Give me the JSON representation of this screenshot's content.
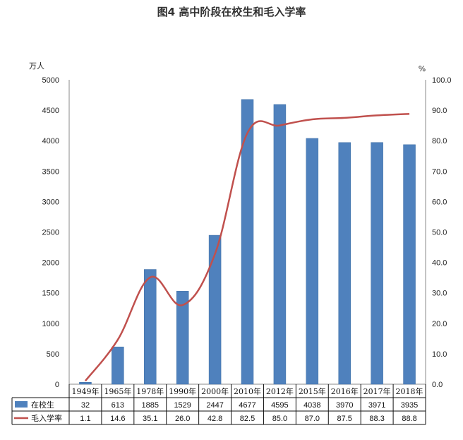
{
  "title": "图4  高中阶段在校生和毛入学率",
  "chart_data": {
    "type": "bar",
    "categories": [
      "1949年",
      "1965年",
      "1978年",
      "1990年",
      "2000年",
      "2010年",
      "2012年",
      "2015年",
      "2016年",
      "2017年",
      "2018年"
    ],
    "series": [
      {
        "name": "在校生",
        "type": "bar",
        "axis": "left",
        "color": "#4f81bd",
        "values": [
          32,
          613,
          1885,
          1529,
          2447,
          4677,
          4595,
          4038,
          3970,
          3971,
          3935
        ]
      },
      {
        "name": "毛入学率",
        "type": "line",
        "axis": "right",
        "color": "#c0504d",
        "values": [
          1.1,
          14.6,
          35.1,
          26.0,
          42.8,
          82.5,
          85.0,
          87.0,
          87.5,
          88.3,
          88.8
        ]
      }
    ],
    "left_axis": {
      "unit": "万人",
      "min": 0,
      "max": 5000,
      "step": 500,
      "ticks": [
        "0",
        "500",
        "1000",
        "1500",
        "2000",
        "2500",
        "3000",
        "3500",
        "4000",
        "4500",
        "5000"
      ]
    },
    "right_axis": {
      "unit": "%",
      "min": 0,
      "max": 100,
      "step": 10,
      "ticks": [
        "0.0",
        "10.0",
        "20.0",
        "30.0",
        "40.0",
        "50.0",
        "60.0",
        "70.0",
        "80.0",
        "90.0",
        "100.0"
      ]
    },
    "bar_labels": [
      "32",
      "613",
      "1885",
      "1529",
      "2447",
      "4677",
      "4595",
      "4038",
      "3970",
      "3971",
      "3935"
    ],
    "line_labels": [
      "1.1",
      "14.6",
      "35.1",
      "26.0",
      "42.8",
      "82.5",
      "85.0",
      "87.0",
      "87.5",
      "88.3",
      "88.8"
    ],
    "legend": "data-table-bottom",
    "grid": false
  }
}
